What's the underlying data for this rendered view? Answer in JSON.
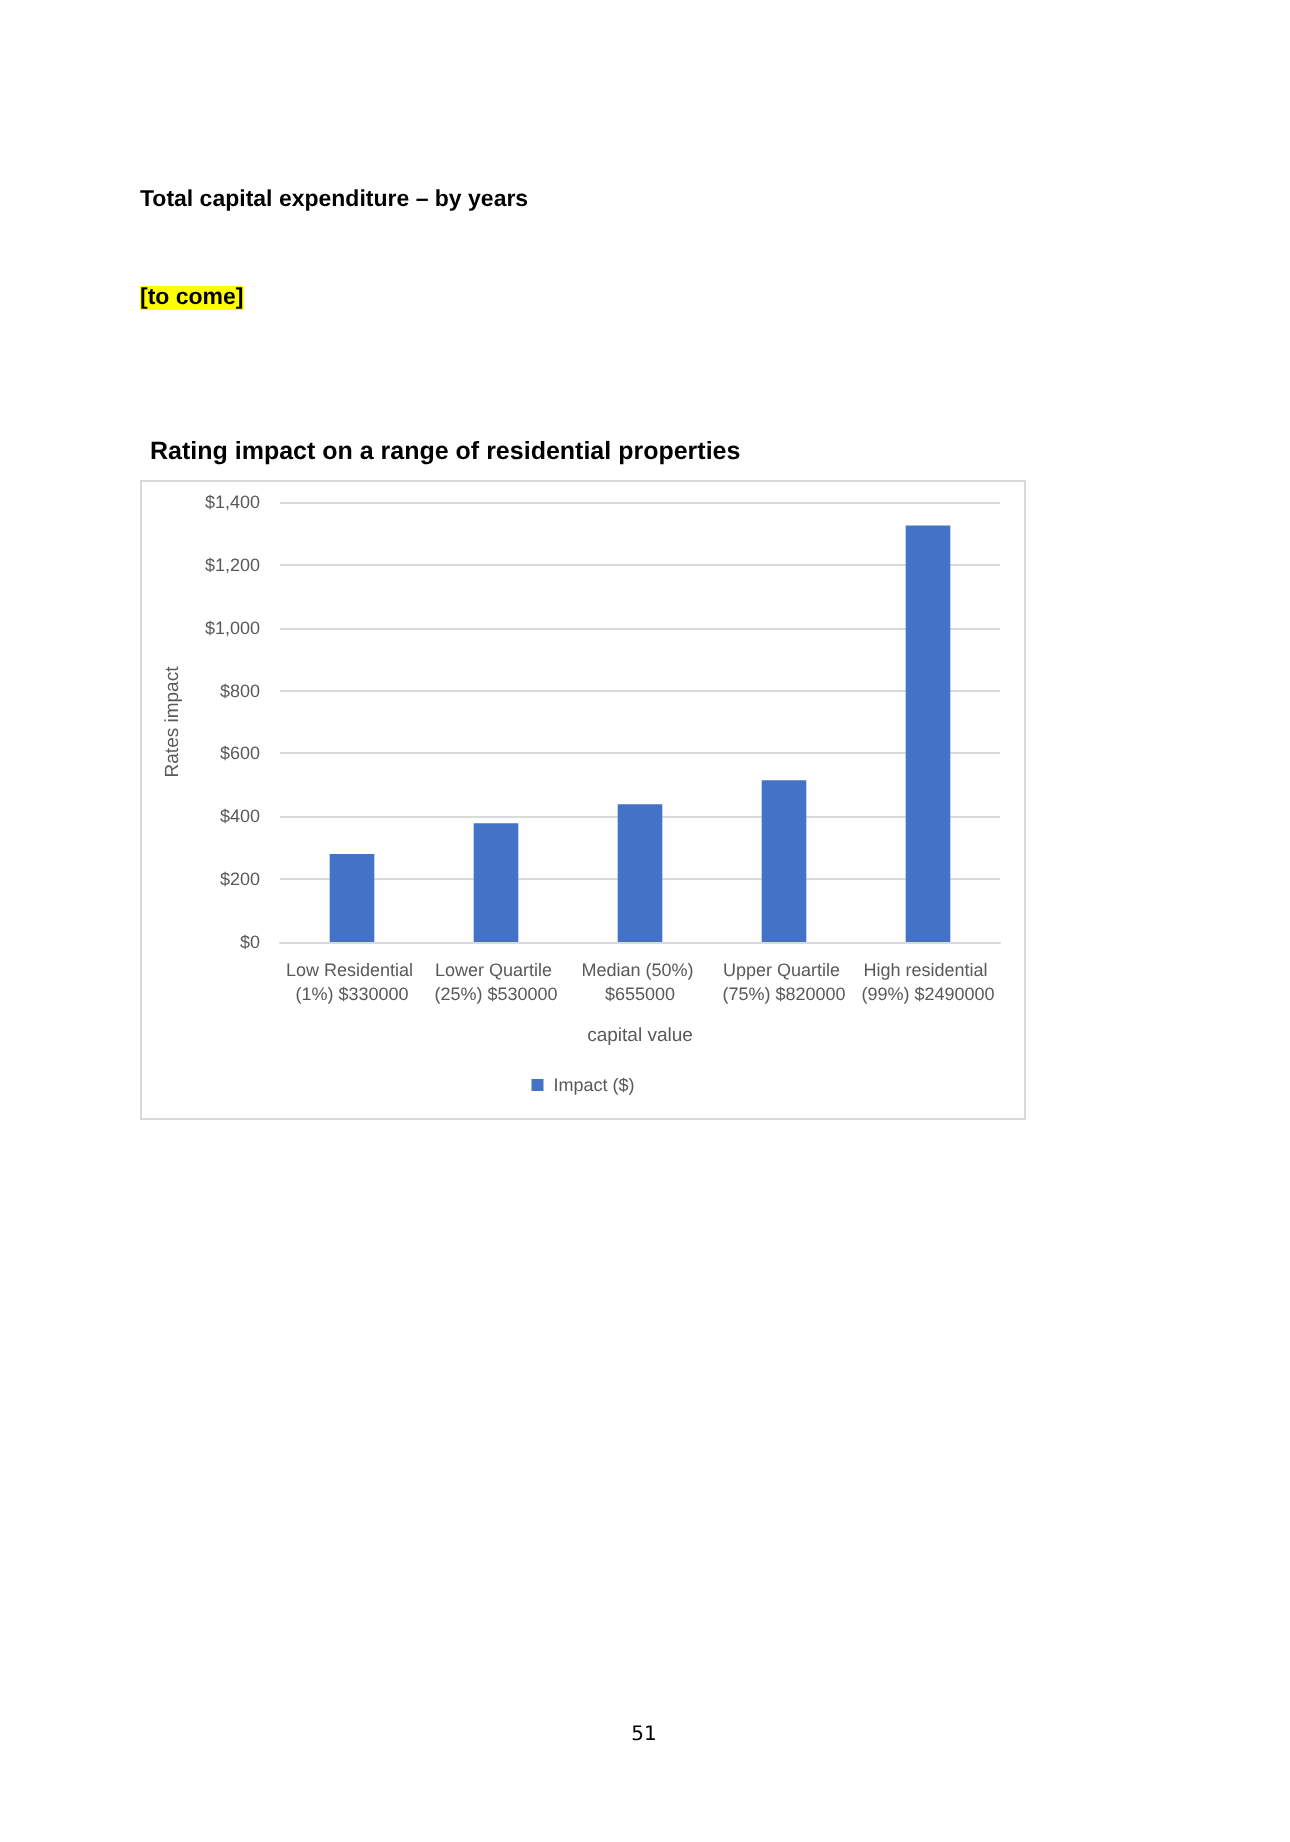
{
  "chart_data": {
    "type": "bar",
    "title": "Rating impact on a range of residential properties",
    "xlabel": "capital value",
    "ylabel": "Rates impact",
    "categories": [
      "Low Residential (1%) $330000",
      "Lower Quartile (25%) $530000",
      "Median (50%) $655000",
      "Upper Quartile (75%) $820000",
      "High residential (99%) $2490000"
    ],
    "series": [
      {
        "name": "Impact ($)",
        "color": "#4472c4",
        "values": [
          280,
          378,
          438,
          515,
          1325
        ]
      }
    ],
    "ylim": [
      0,
      1400
    ],
    "yticks": [
      {
        "value": 0,
        "label": "$0"
      },
      {
        "value": 200,
        "label": "$200"
      },
      {
        "value": 400,
        "label": "$400"
      },
      {
        "value": 600,
        "label": "$600"
      },
      {
        "value": 800,
        "label": "$800"
      },
      {
        "value": 1000,
        "label": "$1,000"
      },
      {
        "value": 1200,
        "label": "$1,200"
      },
      {
        "value": 1400,
        "label": "$1,400"
      }
    ],
    "grid": "y",
    "legend": "bottom",
    "annotations": [
      "Total capital expenditure – by years",
      "[to come]",
      "51"
    ]
  }
}
